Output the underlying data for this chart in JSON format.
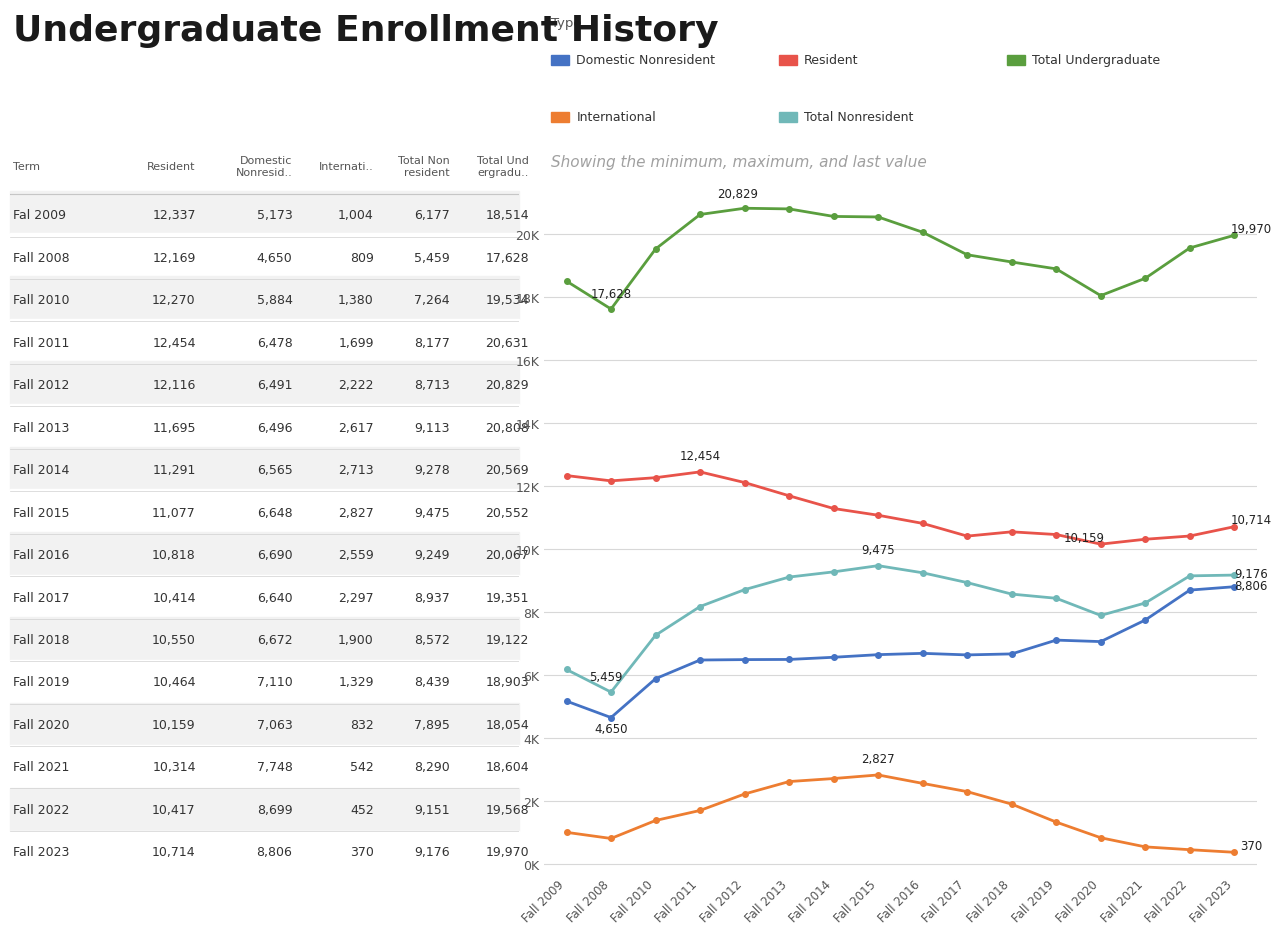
{
  "title": "Undergraduate Enrollment History",
  "subtitle": "Showing the minimum, maximum, and last value",
  "legend_title": "Type",
  "terms": [
    "Fal 2009",
    "Fall 2008",
    "Fall 2010",
    "Fall 2011",
    "Fall 2012",
    "Fall 2013",
    "Fall 2014",
    "Fall 2015",
    "Fall 2016",
    "Fall 2017",
    "Fall 2018",
    "Fall 2019",
    "Fall 2020",
    "Fall 2021",
    "Fall 2022",
    "Fall 2023"
  ],
  "chart_terms": [
    "Fall 2009",
    "Fall 2008",
    "Fall 2010",
    "Fall 2011",
    "Fall 2012",
    "Fall 2013",
    "Fall 2014",
    "Fall 2015",
    "Fall 2016",
    "Fall 2017",
    "Fall 2018",
    "Fall 2019",
    "Fall 2020",
    "Fall 2021",
    "Fall 2022",
    "Fall 2023"
  ],
  "resident": [
    12337,
    12169,
    12270,
    12454,
    12116,
    11695,
    11291,
    11077,
    10818,
    10414,
    10550,
    10464,
    10159,
    10314,
    10417,
    10714
  ],
  "dom_nonres": [
    5173,
    4650,
    5884,
    6478,
    6491,
    6496,
    6565,
    6648,
    6690,
    6640,
    6672,
    7110,
    7063,
    7748,
    8699,
    8806
  ],
  "international": [
    1004,
    809,
    1380,
    1699,
    2222,
    2617,
    2713,
    2827,
    2559,
    2297,
    1900,
    1329,
    832,
    542,
    452,
    370
  ],
  "total_nonres": [
    6177,
    5459,
    7264,
    8177,
    8713,
    9113,
    9278,
    9475,
    9249,
    8937,
    8572,
    8439,
    7895,
    8290,
    9151,
    9176
  ],
  "total_ugrad": [
    18514,
    17628,
    19534,
    20631,
    20829,
    20808,
    20569,
    20552,
    20067,
    19351,
    19122,
    18903,
    18054,
    18604,
    19568,
    19970
  ],
  "colors": {
    "resident": "#e8534a",
    "dom_nonres": "#4472c4",
    "international": "#ed7d31",
    "total_nonres": "#70b8b8",
    "total_ugrad": "#5a9e3e"
  },
  "bg_color": "#ffffff",
  "table_bg_even": "#f2f2f2",
  "table_bg_odd": "#ffffff",
  "yticks": [
    0,
    2000,
    4000,
    6000,
    8000,
    10000,
    12000,
    14000,
    16000,
    18000,
    20000
  ],
  "ytick_labels": [
    "0K",
    "2K",
    "4K",
    "6K",
    "8K",
    "10K",
    "12K",
    "14K",
    "16K",
    "18K",
    "20K"
  ]
}
